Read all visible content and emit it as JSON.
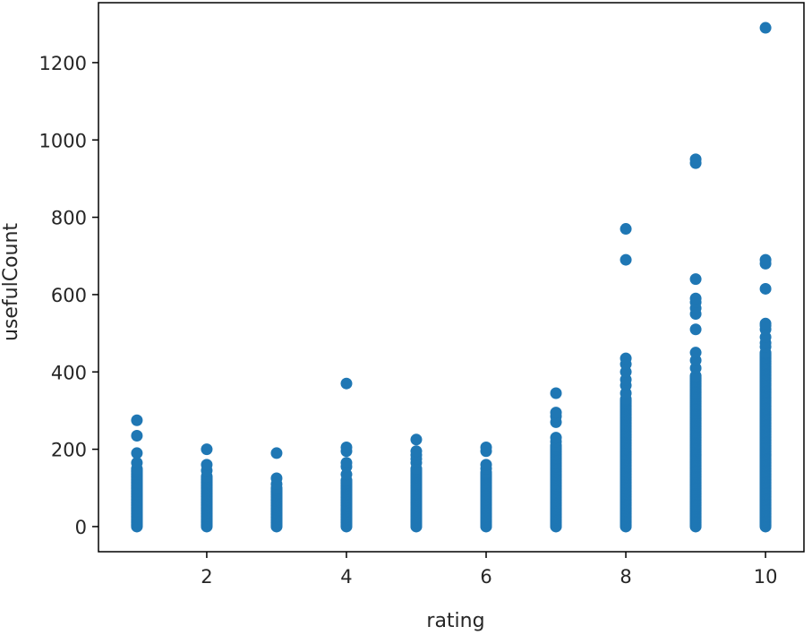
{
  "chart_data": {
    "type": "scatter",
    "title": "",
    "xlabel": "rating",
    "ylabel": "usefulCount",
    "xlim": [
      0.45,
      10.55
    ],
    "ylim": [
      -65,
      1355
    ],
    "xticks": [
      2,
      4,
      6,
      8,
      10
    ],
    "yticks": [
      0,
      200,
      400,
      600,
      800,
      1000,
      1200
    ],
    "grid": false,
    "point_color": "#1f77b4",
    "columns": [
      {
        "x": 1,
        "max": 150,
        "outliers": [
          165,
          190,
          235,
          275
        ]
      },
      {
        "x": 2,
        "max": 130,
        "outliers": [
          145,
          160,
          200
        ]
      },
      {
        "x": 3,
        "max": 100,
        "outliers": [
          110,
          125,
          190
        ]
      },
      {
        "x": 4,
        "max": 120,
        "outliers": [
          135,
          155,
          165,
          195,
          205,
          370
        ]
      },
      {
        "x": 5,
        "max": 150,
        "outliers": [
          165,
          175,
          185,
          195,
          225
        ]
      },
      {
        "x": 6,
        "max": 140,
        "outliers": [
          150,
          160,
          195,
          205
        ]
      },
      {
        "x": 7,
        "max": 210,
        "outliers": [
          220,
          230,
          270,
          285,
          295,
          345
        ]
      },
      {
        "x": 8,
        "max": 330,
        "outliers": [
          345,
          365,
          380,
          400,
          420,
          435,
          690,
          770
        ]
      },
      {
        "x": 9,
        "max": 390,
        "outliers": [
          410,
          430,
          450,
          510,
          550,
          565,
          580,
          590,
          640,
          940,
          950
        ]
      },
      {
        "x": 10,
        "max": 450,
        "outliers": [
          465,
          475,
          490,
          510,
          520,
          525,
          615,
          680,
          690,
          1290
        ]
      }
    ]
  }
}
